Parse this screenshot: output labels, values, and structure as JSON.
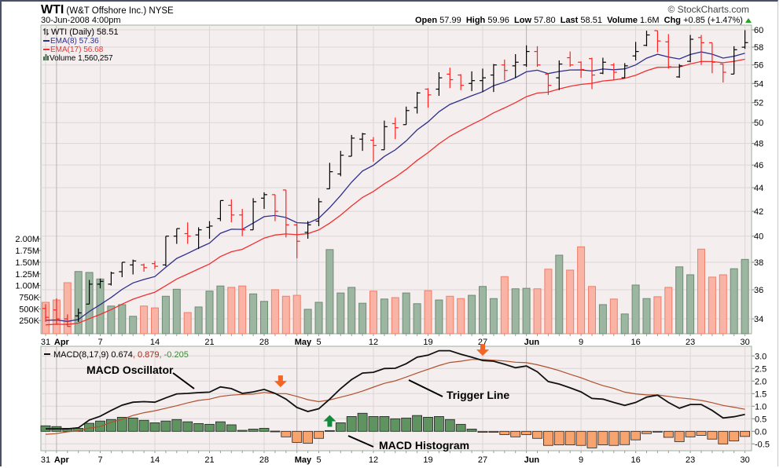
{
  "header": {
    "symbol": "WTI",
    "company": "(W&T Offshore Inc.) NYSE",
    "datetime": "30-Jun-2008 4:00pm",
    "copyright": "© StockCharts.com",
    "open_label": "Open",
    "open": "57.99",
    "high_label": "High",
    "high": "59.96",
    "low_label": "Low",
    "low": "57.80",
    "last_label": "Last",
    "last": "58.51",
    "volume_label": "Volume",
    "volume": "1.6M",
    "chg_label": "Chg",
    "chg": "+0.85 (+1.47%)",
    "chg_color": "#2ca02c"
  },
  "legend": {
    "price": "WTI (Daily) 58.51",
    "ema8": "EMA(8) 57.36",
    "ema17": "EMA(17) 56.68",
    "volume": "Volume 1,560,257",
    "macd_name": "MACD(8,17,9) 0.674",
    "macd_signal": ", 0.879",
    "macd_hist": ", -0.205"
  },
  "colors": {
    "up": "#000000",
    "down": "#ff2020",
    "ema8": "#2e2e8c",
    "ema17": "#f03030",
    "vol_up": "#9cb6a2",
    "vol_up_stroke": "#6d8b73",
    "vol_down": "#f9b4a6",
    "vol_down_stroke": "#f07e6a",
    "macd": "#111111",
    "signal": "#b0502c",
    "hist_pos": "#5f9461",
    "hist_neg": "#f7a46e",
    "arrow_down": "#f26522",
    "arrow_up": "#138a3c"
  },
  "chart_data": [
    {
      "type": "ohlc",
      "title": "WTI (Daily)",
      "scale": "log",
      "ylim": [
        33.2,
        60.6
      ],
      "yticks": [
        34,
        36,
        38,
        40,
        42,
        44,
        46,
        48,
        50,
        52,
        54,
        56,
        58,
        60
      ],
      "xticks": [
        {
          "i": 0,
          "label": "31"
        },
        {
          "i": 1,
          "label": "Apr",
          "bold": true
        },
        {
          "i": 5,
          "label": "7"
        },
        {
          "i": 10,
          "label": "14"
        },
        {
          "i": 15,
          "label": "21"
        },
        {
          "i": 20,
          "label": "28"
        },
        {
          "i": 23,
          "label": "May",
          "bold": true
        },
        {
          "i": 25,
          "label": "5"
        },
        {
          "i": 30,
          "label": "12"
        },
        {
          "i": 35,
          "label": "19"
        },
        {
          "i": 40,
          "label": "27"
        },
        {
          "i": 44,
          "label": "Jun",
          "bold": true
        },
        {
          "i": 49,
          "label": "9"
        },
        {
          "i": 54,
          "label": "16"
        },
        {
          "i": 59,
          "label": "23"
        },
        {
          "i": 64,
          "label": "30"
        }
      ],
      "ohlc": [
        [
          34.7,
          35.0,
          33.8,
          34.1
        ],
        [
          34.6,
          35.4,
          33.6,
          34.0
        ],
        [
          34.0,
          34.3,
          33.5,
          33.5
        ],
        [
          34.2,
          34.7,
          33.8,
          34.4
        ],
        [
          35.0,
          36.7,
          35.0,
          36.4
        ],
        [
          36.4,
          36.8,
          36.1,
          36.6
        ],
        [
          36.4,
          37.3,
          36.3,
          37.2
        ],
        [
          37.3,
          38.0,
          36.9,
          38.0
        ],
        [
          37.8,
          38.2,
          37.1,
          38.1
        ],
        [
          37.8,
          37.9,
          37.3,
          37.6
        ],
        [
          37.9,
          38.1,
          37.5,
          37.7
        ],
        [
          37.8,
          40.0,
          37.7,
          40.0
        ],
        [
          40.0,
          40.6,
          39.4,
          40.6
        ],
        [
          40.2,
          41.1,
          39.4,
          40.0
        ],
        [
          40.1,
          40.7,
          39.0,
          40.5
        ],
        [
          40.7,
          41.2,
          39.8,
          40.8
        ],
        [
          41.4,
          42.9,
          41.2,
          42.9
        ],
        [
          42.5,
          43.0,
          41.1,
          41.7
        ],
        [
          41.7,
          42.2,
          40.0,
          40.5
        ],
        [
          40.5,
          43.1,
          40.5,
          42.8
        ],
        [
          43.1,
          43.6,
          42.2,
          43.4
        ],
        [
          43.4,
          43.4,
          41.2,
          42.0
        ],
        [
          43.8,
          43.8,
          39.9,
          40.9
        ],
        [
          40.9,
          41.0,
          38.3,
          39.6
        ],
        [
          40.3,
          41.2,
          39.8,
          40.9
        ],
        [
          41.2,
          43.1,
          40.8,
          42.8
        ],
        [
          43.9,
          46.2,
          43.9,
          45.4
        ],
        [
          45.2,
          47.3,
          45.0,
          46.9
        ],
        [
          46.8,
          48.8,
          46.8,
          48.5
        ],
        [
          48.4,
          49.0,
          47.3,
          48.9
        ],
        [
          48.3,
          48.6,
          46.3,
          47.8
        ],
        [
          47.4,
          50.2,
          47.4,
          49.6
        ],
        [
          49.9,
          50.5,
          48.4,
          49.5
        ],
        [
          49.8,
          51.6,
          49.8,
          51.2
        ],
        [
          51.5,
          53.1,
          50.9,
          53.0
        ],
        [
          53.4,
          53.5,
          51.5,
          52.8
        ],
        [
          53.4,
          55.2,
          52.7,
          54.6
        ],
        [
          55.0,
          55.7,
          53.5,
          54.4
        ],
        [
          54.9,
          55.0,
          53.3,
          53.8
        ],
        [
          54.0,
          55.3,
          53.2,
          54.3
        ],
        [
          54.3,
          55.6,
          53.1,
          54.6
        ],
        [
          54.9,
          56.1,
          53.1,
          56.0
        ],
        [
          56.0,
          56.6,
          54.3,
          55.4
        ],
        [
          55.9,
          57.2,
          54.6,
          56.3
        ],
        [
          56.0,
          58.2,
          55.8,
          57.5
        ],
        [
          57.5,
          58.1,
          55.8,
          56.0
        ],
        [
          55.0,
          55.1,
          52.8,
          53.8
        ],
        [
          54.6,
          56.5,
          53.3,
          56.1
        ],
        [
          56.8,
          57.5,
          55.8,
          56.0
        ],
        [
          56.3,
          56.4,
          54.6,
          55.5
        ],
        [
          56.7,
          56.8,
          53.4,
          54.9
        ],
        [
          55.1,
          56.8,
          55.0,
          56.3
        ],
        [
          56.0,
          56.2,
          54.4,
          55.2
        ],
        [
          54.6,
          56.2,
          54.6,
          55.9
        ],
        [
          57.0,
          58.6,
          56.5,
          57.5
        ],
        [
          58.2,
          59.9,
          58.1,
          59.4
        ],
        [
          59.9,
          59.9,
          57.4,
          58.7
        ],
        [
          58.6,
          59.5,
          55.6,
          55.8
        ],
        [
          54.7,
          56.1,
          54.6,
          55.9
        ],
        [
          56.4,
          59.4,
          56.3,
          58.9
        ],
        [
          59.1,
          59.4,
          56.0,
          58.5
        ],
        [
          58.5,
          58.5,
          55.1,
          56.3
        ],
        [
          56.1,
          56.1,
          54.1,
          55.2
        ],
        [
          55.0,
          58.1,
          55.0,
          57.7
        ],
        [
          57.99,
          59.96,
          57.8,
          58.51
        ]
      ],
      "ema8_seed": 33.9,
      "ema17_seed": 33.6
    },
    {
      "type": "bar",
      "title": "Volume",
      "unit": "millions",
      "yticks": [
        {
          "v": 0.25,
          "label": "250K"
        },
        {
          "v": 0.5,
          "label": "500K"
        },
        {
          "v": 0.75,
          "label": "750K"
        },
        {
          "v": 1.0,
          "label": "1.00M"
        },
        {
          "v": 1.25,
          "label": "1.25M"
        },
        {
          "v": 1.5,
          "label": "1.50M"
        },
        {
          "v": 1.75,
          "label": "1.75M"
        },
        {
          "v": 2.0,
          "label": "2.00M"
        }
      ],
      "values": [
        0.64,
        0.69,
        1.06,
        1.3,
        1.28,
        1.14,
        0.56,
        0.59,
        0.34,
        0.56,
        0.52,
        0.77,
        0.92,
        0.42,
        0.54,
        0.88,
        0.99,
        0.96,
        0.99,
        0.82,
        0.66,
        0.91,
        0.77,
        0.79,
        0.49,
        0.64,
        1.77,
        0.84,
        0.96,
        0.62,
        0.88,
        0.71,
        0.74,
        0.84,
        0.61,
        0.89,
        0.69,
        0.77,
        0.72,
        0.79,
        0.98,
        0.72,
        1.19,
        0.93,
        0.94,
        0.93,
        1.35,
        1.65,
        1.33,
        1.83,
        0.98,
        0.59,
        0.71,
        0.39,
        1.01,
        0.72,
        0.76,
        0.96,
        1.4,
        1.23,
        1.78,
        1.18,
        1.23,
        1.36,
        1.56
      ]
    },
    {
      "type": "line",
      "title": "MACD(8,17,9)",
      "ylim": [
        -0.8,
        3.35
      ],
      "yticks": [
        -0.5,
        0.0,
        0.5,
        1.0,
        1.5,
        2.0,
        2.5,
        3.0
      ],
      "macd": [
        0.1,
        0.1,
        0.1,
        0.14,
        0.45,
        0.6,
        0.83,
        1.04,
        1.16,
        1.18,
        1.16,
        1.33,
        1.49,
        1.51,
        1.54,
        1.56,
        1.77,
        1.7,
        1.51,
        1.57,
        1.67,
        1.51,
        1.28,
        0.95,
        0.79,
        0.9,
        1.28,
        1.7,
        2.06,
        2.32,
        2.35,
        2.5,
        2.51,
        2.69,
        2.95,
        3.03,
        3.21,
        3.21,
        3.07,
        2.95,
        2.82,
        2.79,
        2.67,
        2.53,
        2.6,
        2.37,
        1.98,
        1.88,
        1.73,
        1.57,
        1.31,
        1.28,
        1.15,
        1.03,
        1.15,
        1.36,
        1.44,
        1.15,
        0.92,
        1.07,
        1.07,
        0.83,
        0.53,
        0.58,
        0.674
      ],
      "histogram": [
        0.22,
        0.19,
        0.12,
        0.12,
        0.32,
        0.41,
        0.47,
        0.56,
        0.53,
        0.44,
        0.34,
        0.41,
        0.47,
        0.38,
        0.31,
        0.28,
        0.38,
        0.26,
        0.04,
        0.09,
        0.12,
        0.01,
        -0.22,
        -0.44,
        -0.47,
        -0.28,
        0.03,
        0.34,
        0.59,
        0.72,
        0.59,
        0.59,
        0.5,
        0.53,
        0.63,
        0.56,
        0.59,
        0.47,
        0.28,
        0.09,
        -0.04,
        -0.04,
        -0.13,
        -0.22,
        -0.13,
        -0.28,
        -0.56,
        -0.54,
        -0.54,
        -0.56,
        -0.66,
        -0.54,
        -0.56,
        -0.53,
        -0.34,
        -0.09,
        -0.01,
        -0.24,
        -0.41,
        -0.22,
        -0.16,
        -0.31,
        -0.5,
        -0.38,
        -0.205
      ],
      "annotations": [
        {
          "text": "MACD Oscillator"
        },
        {
          "text": "Trigger Line"
        },
        {
          "text": "MACD Histogram"
        }
      ],
      "signal_arrows": [
        {
          "i": 21.5,
          "dir": "down",
          "v": 1.6
        },
        {
          "i": 26,
          "dir": "up",
          "v": 0.9
        },
        {
          "i": 40,
          "dir": "down",
          "v": 2.85
        }
      ]
    }
  ]
}
